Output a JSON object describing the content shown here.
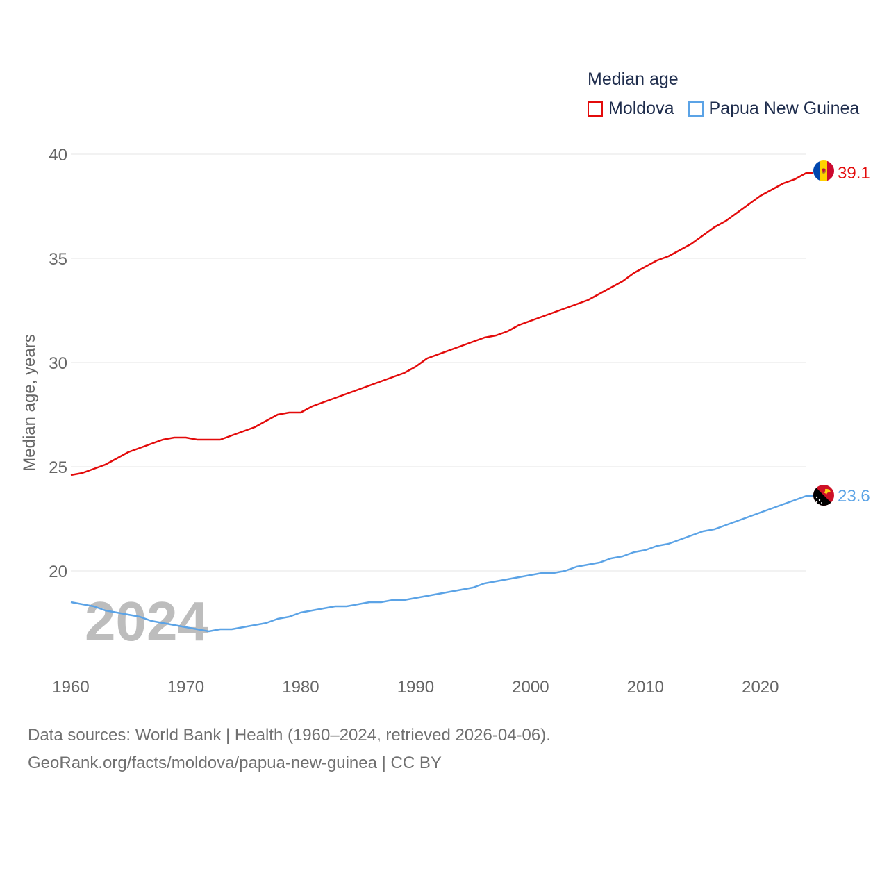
{
  "chart_data": {
    "type": "line",
    "title": "",
    "legend_title": "Median age",
    "ylabel": "Median age, years",
    "xlabel": "",
    "ylim": [
      16,
      40
    ],
    "xlim": [
      1960,
      2024
    ],
    "yticks": [
      20,
      25,
      30,
      35,
      40
    ],
    "xticks": [
      1960,
      1970,
      1980,
      1990,
      2000,
      2010,
      2020
    ],
    "watermark_year": "2024",
    "x": [
      1960,
      1961,
      1962,
      1963,
      1964,
      1965,
      1966,
      1967,
      1968,
      1969,
      1970,
      1971,
      1972,
      1973,
      1974,
      1975,
      1976,
      1977,
      1978,
      1979,
      1980,
      1981,
      1982,
      1983,
      1984,
      1985,
      1986,
      1987,
      1988,
      1989,
      1990,
      1991,
      1992,
      1993,
      1994,
      1995,
      1996,
      1997,
      1998,
      1999,
      2000,
      2001,
      2002,
      2003,
      2004,
      2005,
      2006,
      2007,
      2008,
      2009,
      2010,
      2011,
      2012,
      2013,
      2014,
      2015,
      2016,
      2017,
      2018,
      2019,
      2020,
      2021,
      2022,
      2023,
      2024
    ],
    "series": [
      {
        "name": "Moldova",
        "color": "#e30b0b",
        "end_label": "39.1",
        "flag": "moldova-flag",
        "values": [
          24.6,
          24.7,
          24.9,
          25.1,
          25.4,
          25.7,
          25.9,
          26.1,
          26.3,
          26.4,
          26.4,
          26.3,
          26.3,
          26.3,
          26.5,
          26.7,
          26.9,
          27.2,
          27.5,
          27.6,
          27.6,
          27.9,
          28.1,
          28.3,
          28.5,
          28.7,
          28.9,
          29.1,
          29.3,
          29.5,
          29.8,
          30.2,
          30.4,
          30.6,
          30.8,
          31.0,
          31.2,
          31.3,
          31.5,
          31.8,
          32.0,
          32.2,
          32.4,
          32.6,
          32.8,
          33.0,
          33.3,
          33.6,
          33.9,
          34.3,
          34.6,
          34.9,
          35.1,
          35.4,
          35.7,
          36.1,
          36.5,
          36.8,
          37.2,
          37.6,
          38.0,
          38.3,
          38.6,
          38.8,
          39.1
        ]
      },
      {
        "name": "Papua New Guinea",
        "color": "#5ba3e6",
        "end_label": "23.6",
        "flag": "papua-new-guinea-flag",
        "values": [
          18.5,
          18.4,
          18.3,
          18.1,
          18.0,
          17.9,
          17.8,
          17.6,
          17.5,
          17.4,
          17.3,
          17.2,
          17.1,
          17.2,
          17.2,
          17.3,
          17.4,
          17.5,
          17.7,
          17.8,
          18.0,
          18.1,
          18.2,
          18.3,
          18.3,
          18.4,
          18.5,
          18.5,
          18.6,
          18.6,
          18.7,
          18.8,
          18.9,
          19.0,
          19.1,
          19.2,
          19.4,
          19.5,
          19.6,
          19.7,
          19.8,
          19.9,
          19.9,
          20.0,
          20.2,
          20.3,
          20.4,
          20.6,
          20.7,
          20.9,
          21.0,
          21.2,
          21.3,
          21.5,
          21.7,
          21.9,
          22.0,
          22.2,
          22.4,
          22.6,
          22.8,
          23.0,
          23.2,
          23.4,
          23.6
        ]
      }
    ]
  },
  "footer": {
    "source_line": "Data sources: World Bank | Health (1960–2024, retrieved 2026-04-06).",
    "url_line": "GeoRank.org/facts/moldova/papua-new-guinea | CC BY"
  }
}
